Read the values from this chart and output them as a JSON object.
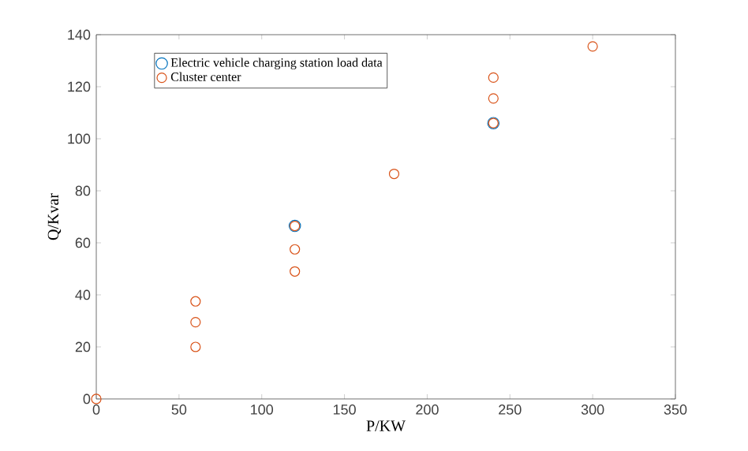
{
  "chart_data": {
    "type": "scatter",
    "xlabel": "P/KW",
    "ylabel": "Q/Kvar",
    "xlim": [
      0,
      350
    ],
    "ylim": [
      0,
      140
    ],
    "xticks": [
      0,
      50,
      100,
      150,
      200,
      250,
      300,
      350
    ],
    "yticks": [
      0,
      20,
      40,
      60,
      80,
      100,
      120,
      140
    ],
    "marker": "circle",
    "legend": "top left",
    "grid": false,
    "series": [
      {
        "name": "Electric vehicle charging station load data",
        "color": "#0072bd",
        "x": [
          120,
          240
        ],
        "values": [
          66.5,
          106
        ]
      },
      {
        "name": "Cluster center",
        "color": "#d95319",
        "x": [
          0,
          60,
          60,
          60,
          120,
          120,
          120,
          180,
          240,
          240,
          240,
          300
        ],
        "values": [
          0,
          20,
          29.5,
          37.5,
          49,
          57.5,
          66.5,
          86.5,
          106,
          115.5,
          123.5,
          135.5
        ]
      }
    ]
  }
}
